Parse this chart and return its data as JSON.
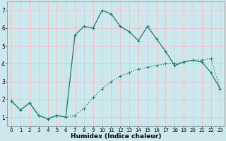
{
  "title": "",
  "xlabel": "Humidex (Indice chaleur)",
  "ylabel": "",
  "background_color": "#cce8ec",
  "grid_color": "#f0c0c0",
  "line_color": "#1a7a6e",
  "xlim": [
    -0.5,
    23.5
  ],
  "ylim": [
    0.5,
    7.5
  ],
  "xticks": [
    0,
    1,
    2,
    3,
    4,
    5,
    6,
    7,
    8,
    9,
    10,
    11,
    12,
    13,
    14,
    15,
    16,
    17,
    18,
    19,
    20,
    21,
    22,
    23
  ],
  "yticks": [
    1,
    2,
    3,
    4,
    5,
    6,
    7
  ],
  "line1_x": [
    0,
    1,
    2,
    3,
    4,
    5,
    6,
    7,
    8,
    9,
    10,
    11,
    12,
    13,
    14,
    15,
    16,
    17,
    18,
    19,
    20,
    21,
    22,
    23
  ],
  "line1_y": [
    1.9,
    1.4,
    1.8,
    1.1,
    0.9,
    1.1,
    1.0,
    5.6,
    6.1,
    6.0,
    7.0,
    6.8,
    6.1,
    5.8,
    5.3,
    6.1,
    5.4,
    4.7,
    3.9,
    4.1,
    4.2,
    4.1,
    3.5,
    2.6
  ],
  "line2_x": [
    0,
    1,
    2,
    3,
    4,
    5,
    6,
    7,
    8,
    9,
    10,
    11,
    12,
    13,
    14,
    15,
    16,
    17,
    18,
    19,
    20,
    21,
    22,
    23
  ],
  "line2_y": [
    1.9,
    1.4,
    1.8,
    1.1,
    0.9,
    1.1,
    1.0,
    1.1,
    1.5,
    2.1,
    2.6,
    3.0,
    3.3,
    3.5,
    3.7,
    3.8,
    3.9,
    4.0,
    4.0,
    4.1,
    4.2,
    4.2,
    4.3,
    2.6
  ],
  "line1_style": "-",
  "line2_style": ":",
  "marker": "+",
  "markersize": 3,
  "linewidth": 0.9,
  "tick_fontsize": 5.0,
  "xlabel_fontsize": 6.5
}
